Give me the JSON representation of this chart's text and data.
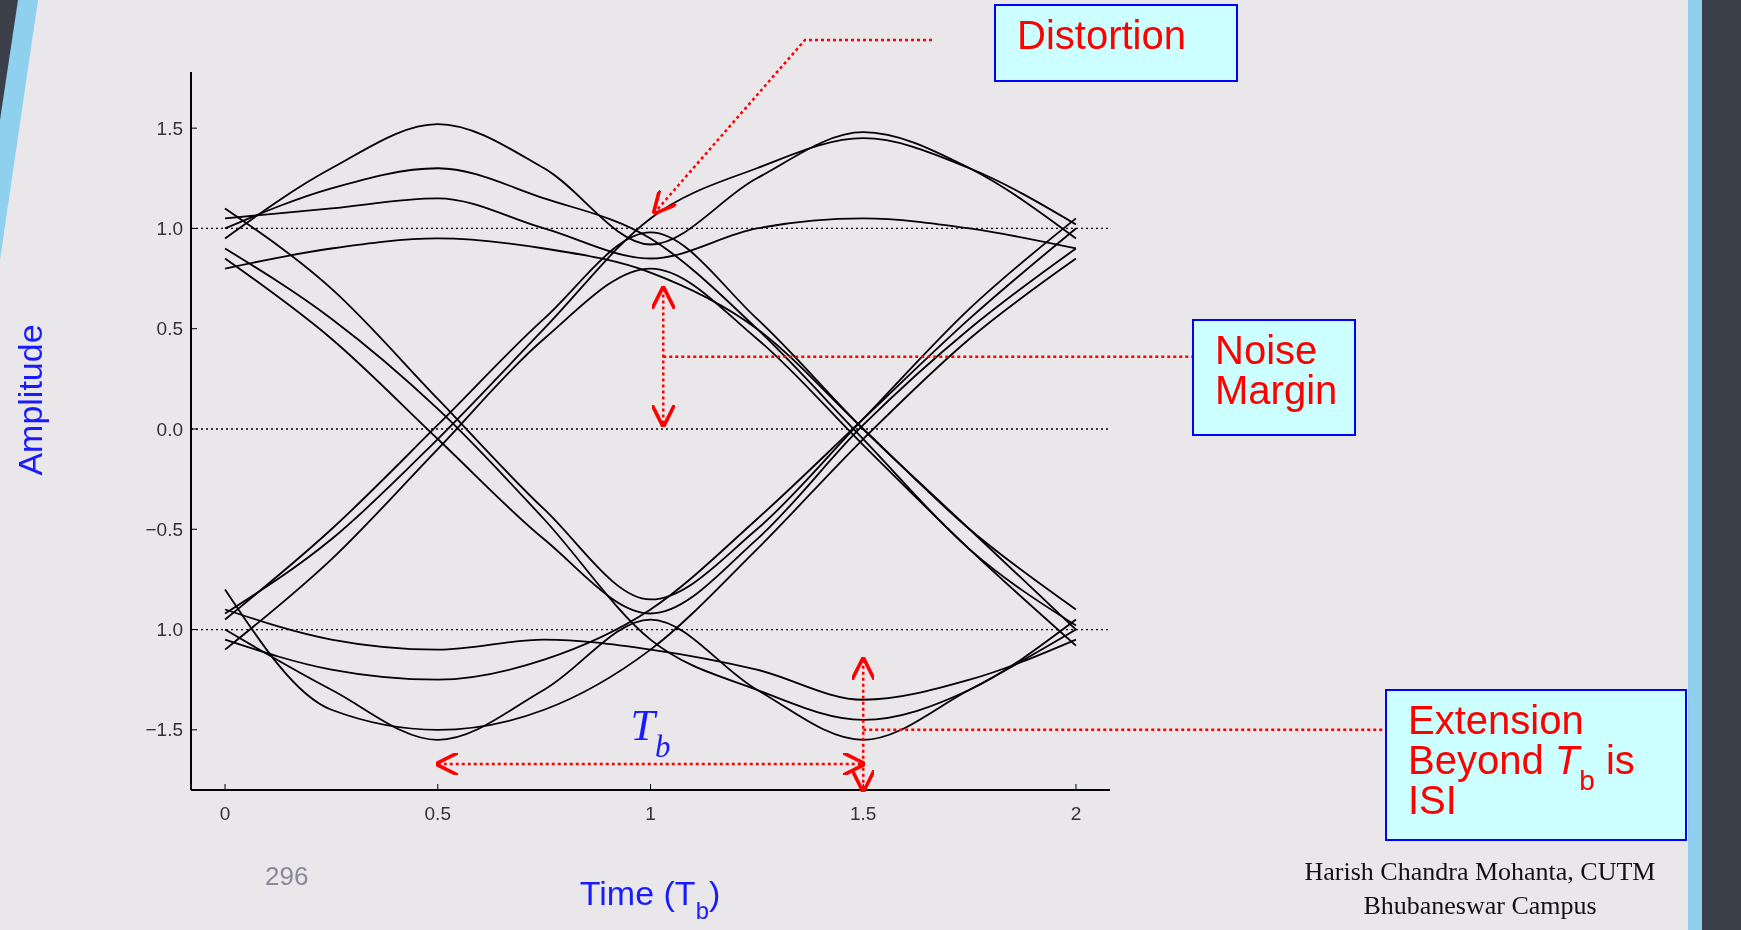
{
  "chart_data": {
    "type": "line",
    "xlabel": "Time (T$_{b}$)",
    "ylabel": "Amplitude",
    "xlim": [
      -0.08,
      2.08
    ],
    "ylim": [
      -1.8,
      1.78
    ],
    "xticks": [
      0,
      0.5,
      1,
      1.5,
      2
    ],
    "yticks": [
      1.5,
      {
        "value": 1,
        "label": "1.0"
      },
      0.5,
      {
        "value": 0,
        "label": "0.0"
      },
      {
        "value": -0.5,
        "label": "−0.5"
      },
      {
        "value": -1,
        "label": "1.0"
      },
      {
        "value": -1.5,
        "label": "−1.5"
      }
    ],
    "x": [
      0,
      0.25,
      0.5,
      0.75,
      1,
      1.25,
      1.5,
      1.75,
      2
    ],
    "series": [
      {
        "color": "#000000",
        "values": [
          0.95,
          1.3,
          1.52,
          1.3,
          0.92,
          1.25,
          1.48,
          1.3,
          0.95
        ]
      },
      {
        "color": "#000000",
        "values": [
          1.0,
          1.2,
          1.3,
          1.15,
          0.95,
          0.5,
          -0.05,
          -0.6,
          -0.98
        ]
      },
      {
        "color": "#000000",
        "values": [
          0.85,
          0.45,
          -0.05,
          -0.55,
          -0.92,
          -0.55,
          0.02,
          0.5,
          0.9
        ]
      },
      {
        "color": "#000000",
        "values": [
          -0.95,
          -0.5,
          0.02,
          0.55,
          0.98,
          0.55,
          0.0,
          -0.5,
          -1.0
        ]
      },
      {
        "color": "#000000",
        "values": [
          -1.0,
          -1.3,
          -1.55,
          -1.3,
          -0.95,
          -1.3,
          -1.55,
          -1.3,
          -1.0
        ]
      },
      {
        "color": "#000000",
        "values": [
          -1.05,
          -1.2,
          -1.25,
          -1.15,
          -0.9,
          -0.45,
          0.05,
          0.55,
          1.0
        ]
      },
      {
        "color": "#000000",
        "values": [
          1.05,
          1.1,
          1.15,
          1.0,
          0.85,
          1.0,
          1.05,
          1.0,
          0.9
        ]
      },
      {
        "color": "#000000",
        "values": [
          -0.9,
          -1.05,
          -1.1,
          -1.05,
          -1.1,
          -1.2,
          -1.35,
          -1.25,
          -1.05
        ]
      },
      {
        "color": "#000000",
        "values": [
          0.9,
          0.55,
          0.1,
          -0.45,
          -1.05,
          -1.3,
          -1.45,
          -1.3,
          -0.95
        ]
      },
      {
        "color": "#000000",
        "values": [
          -0.92,
          -0.55,
          -0.05,
          0.5,
          1.05,
          1.3,
          1.45,
          1.3,
          1.02
        ]
      },
      {
        "color": "#000000",
        "values": [
          1.1,
          0.7,
          0.15,
          -0.4,
          -0.85,
          -0.5,
          0.05,
          0.6,
          1.05
        ]
      },
      {
        "color": "#000000",
        "values": [
          -1.1,
          -0.65,
          -0.1,
          0.45,
          0.8,
          0.45,
          -0.08,
          -0.6,
          -1.08
        ]
      },
      {
        "color": "#000000",
        "values": [
          0.8,
          0.9,
          0.95,
          0.9,
          0.78,
          0.5,
          0.0,
          -0.5,
          -0.9
        ]
      },
      {
        "color": "#000000",
        "values": [
          -0.8,
          -1.4,
          -1.5,
          -1.4,
          -1.1,
          -0.6,
          -0.05,
          0.45,
          0.85
        ]
      }
    ],
    "ref_lines": [
      {
        "axis": "y",
        "value": 1,
        "color": "#000000",
        "line_style": "dotted"
      },
      {
        "axis": "y",
        "value": 0,
        "color": "#000000",
        "line_style": "dotted"
      },
      {
        "axis": "y",
        "value": -1,
        "color": "#000000",
        "line_style": "dotted"
      }
    ],
    "annotations": [
      "Distortion",
      "Noise\nMargin",
      "Extension\nBeyond T$_{b}$ is\nISI",
      "T$_{b}$",
      "296",
      "Harish Chandra Mohanta, CUTM\nBhubaneswar Campus"
    ]
  }
}
